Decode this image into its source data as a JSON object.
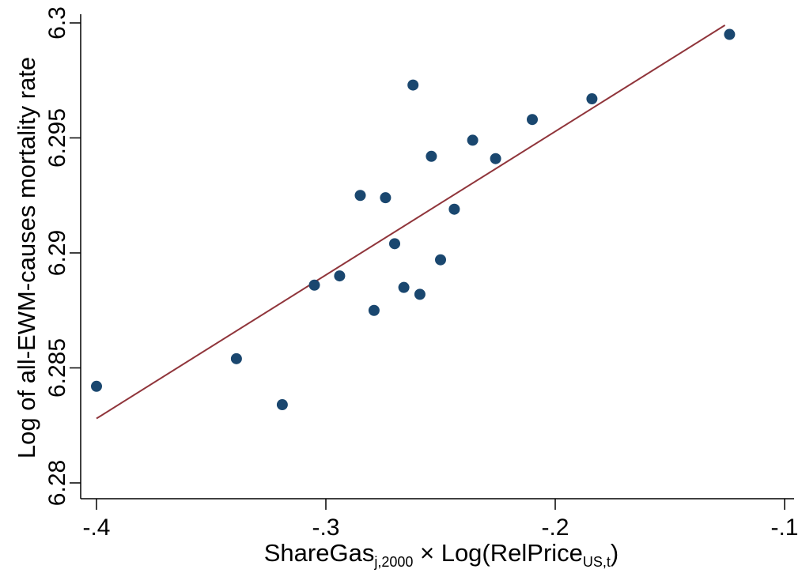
{
  "chart_data": {
    "type": "scatter",
    "xlabel_parts": {
      "a": "ShareGas",
      "a_sub": "j,2000",
      "b": " × Log(RelPrice",
      "b_sub": "US,t",
      "c": ")"
    },
    "ylabel": "Log of all-EWM-causes mortality rate",
    "xlim": [
      -0.4,
      -0.1
    ],
    "ylim": [
      6.28,
      6.3
    ],
    "xticks": [
      {
        "value": -0.4,
        "label": "-.4"
      },
      {
        "value": -0.3,
        "label": "-.3"
      },
      {
        "value": -0.2,
        "label": "-.2"
      },
      {
        "value": -0.1,
        "label": "-.1"
      }
    ],
    "yticks": [
      {
        "value": 6.28,
        "label": "6.28"
      },
      {
        "value": 6.285,
        "label": "6.285"
      },
      {
        "value": 6.29,
        "label": "6.29"
      },
      {
        "value": 6.295,
        "label": "6.295"
      },
      {
        "value": 6.3,
        "label": "6.3"
      }
    ],
    "points": [
      {
        "x": -0.4,
        "y": 6.2842
      },
      {
        "x": -0.339,
        "y": 6.2854
      },
      {
        "x": -0.319,
        "y": 6.2834
      },
      {
        "x": -0.305,
        "y": 6.2886
      },
      {
        "x": -0.294,
        "y": 6.289
      },
      {
        "x": -0.285,
        "y": 6.2925
      },
      {
        "x": -0.279,
        "y": 6.2875
      },
      {
        "x": -0.274,
        "y": 6.2924
      },
      {
        "x": -0.27,
        "y": 6.2904
      },
      {
        "x": -0.266,
        "y": 6.2885
      },
      {
        "x": -0.262,
        "y": 6.2973
      },
      {
        "x": -0.259,
        "y": 6.2882
      },
      {
        "x": -0.254,
        "y": 6.2942
      },
      {
        "x": -0.25,
        "y": 6.2897
      },
      {
        "x": -0.244,
        "y": 6.2919
      },
      {
        "x": -0.236,
        "y": 6.2949
      },
      {
        "x": -0.226,
        "y": 6.2941
      },
      {
        "x": -0.21,
        "y": 6.2958
      },
      {
        "x": -0.184,
        "y": 6.2967
      },
      {
        "x": -0.124,
        "y": 6.2995
      }
    ],
    "fit_line": {
      "x": [
        -0.4,
        -0.126
      ],
      "y": [
        6.2828,
        6.2999
      ]
    },
    "colors": {
      "points": "#1a476f",
      "fit_line": "#90353b",
      "axis": "#000000"
    },
    "grid": false
  }
}
